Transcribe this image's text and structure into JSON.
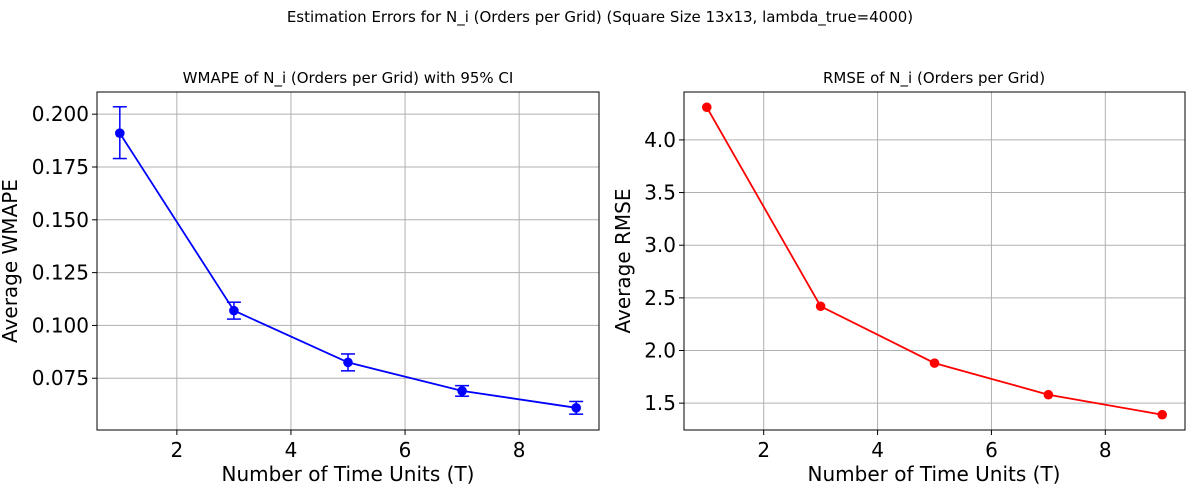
{
  "figure": {
    "suptitle": "Estimation Errors for N_i (Orders per Grid) (Square Size 13x13, lambda_true=4000)"
  },
  "chart_data": [
    {
      "type": "line",
      "title": "WMAPE of N_i (Orders per Grid) with 95% CI",
      "xlabel": "Number of Time Units (T)",
      "ylabel": "Average WMAPE",
      "x": [
        1,
        3,
        5,
        7,
        9
      ],
      "series": [
        {
          "values": [
            0.191,
            0.107,
            0.0825,
            0.069,
            0.061
          ],
          "ci_low": [
            0.179,
            0.103,
            0.0785,
            0.0665,
            0.058
          ],
          "ci_high": [
            0.2035,
            0.111,
            0.0865,
            0.0715,
            0.064
          ],
          "color": "#0000ff"
        }
      ],
      "xlim": [
        0.6,
        9.4
      ],
      "ylim": [
        0.0505,
        0.2105
      ],
      "xticks": [
        2,
        4,
        6,
        8
      ],
      "xtick_labels": [
        "2",
        "4",
        "6",
        "8"
      ],
      "yticks": [
        0.075,
        0.1,
        0.125,
        0.15,
        0.175,
        0.2
      ],
      "ytick_labels": [
        "0.075",
        "0.100",
        "0.125",
        "0.150",
        "0.175",
        "0.200"
      ],
      "grid": true,
      "markers": "circle",
      "error_bars": true
    },
    {
      "type": "line",
      "title": "RMSE of N_i (Orders per Grid)",
      "xlabel": "Number of Time Units (T)",
      "ylabel": "Average RMSE",
      "x": [
        1,
        3,
        5,
        7,
        9
      ],
      "series": [
        {
          "values": [
            4.31,
            2.42,
            1.88,
            1.58,
            1.39
          ],
          "color": "#ff0000"
        }
      ],
      "xlim": [
        0.6,
        9.4
      ],
      "ylim": [
        1.245,
        4.455
      ],
      "xticks": [
        2,
        4,
        6,
        8
      ],
      "xtick_labels": [
        "2",
        "4",
        "6",
        "8"
      ],
      "yticks": [
        1.5,
        2.0,
        2.5,
        3.0,
        3.5,
        4.0
      ],
      "ytick_labels": [
        "1.5",
        "2.0",
        "2.5",
        "3.0",
        "3.5",
        "4.0"
      ],
      "grid": true,
      "markers": "circle",
      "error_bars": false
    }
  ]
}
